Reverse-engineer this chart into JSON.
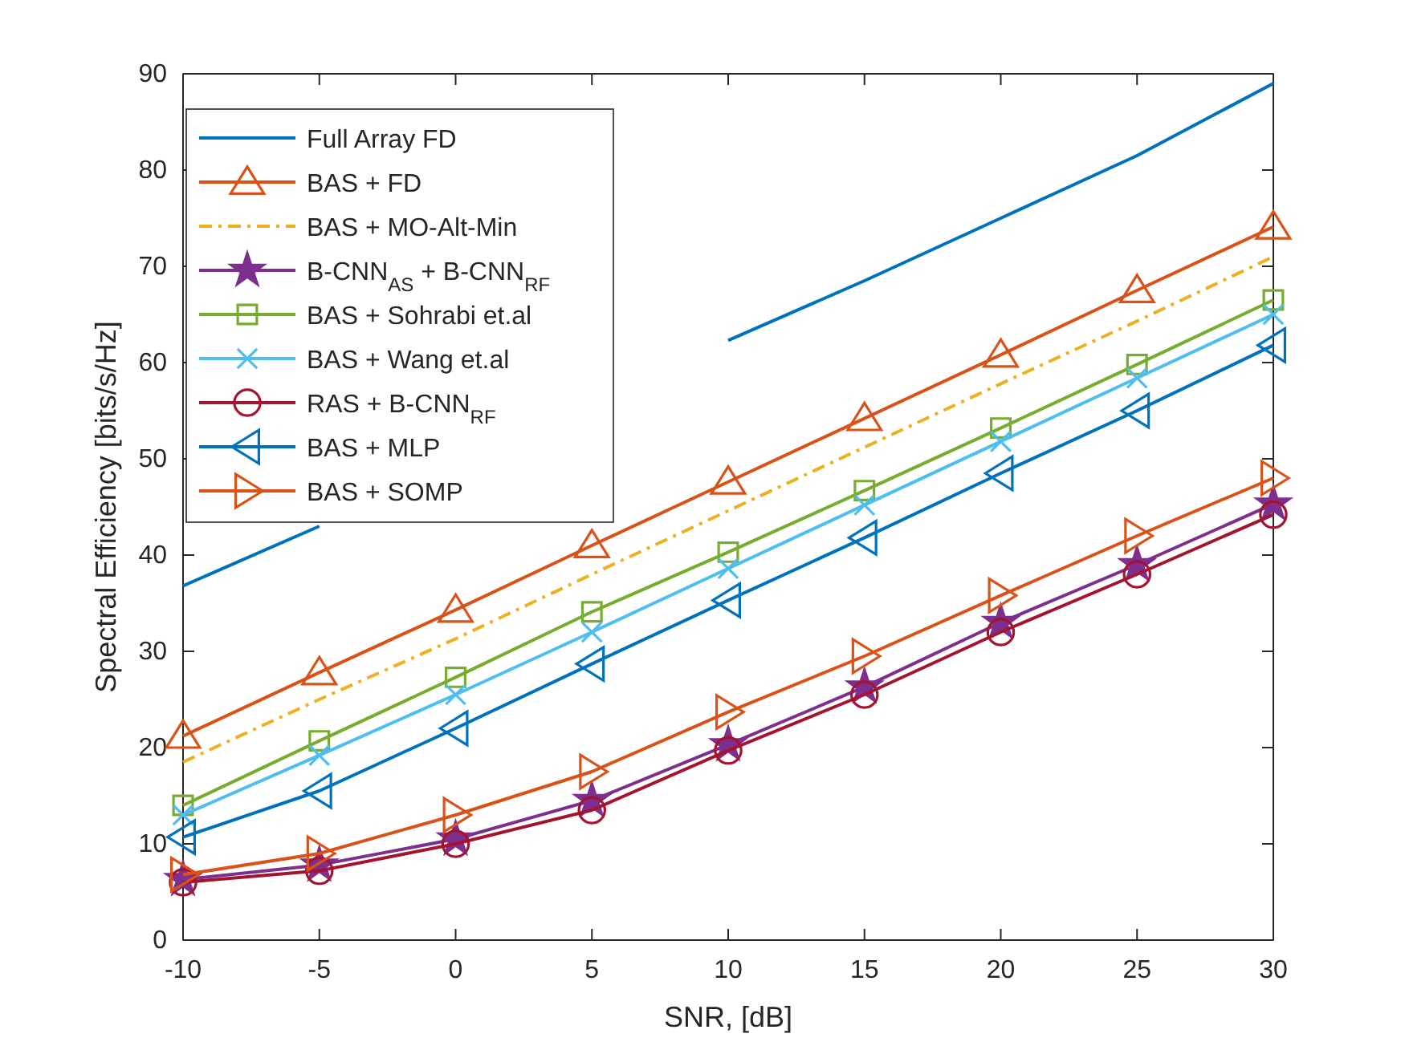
{
  "chart_data": {
    "type": "line",
    "xlabel": "SNR, [dB]",
    "ylabel": "Spectral Efficiency [bits/s/Hz]",
    "x": [
      -10,
      -5,
      0,
      5,
      10,
      15,
      20,
      25,
      30
    ],
    "xlim": [
      -10,
      30
    ],
    "xticks": [
      -10,
      -5,
      0,
      5,
      10,
      15,
      20,
      25,
      30
    ],
    "ylim": [
      0,
      90
    ],
    "yticks": [
      0,
      10,
      20,
      30,
      40,
      50,
      60,
      70,
      80,
      90
    ],
    "grid": false,
    "legend": "top left",
    "series": [
      {
        "name": "Full Array FD",
        "color": "#0072bd",
        "marker": "none",
        "line_style": "solid",
        "values": [
          36.8,
          43,
          null,
          null,
          62.3,
          68.5,
          75,
          81.5,
          89
        ]
      },
      {
        "name": "BAS + FD",
        "color": "#d95319",
        "marker": "triangle",
        "line_style": "solid",
        "values": [
          21.2,
          27.8,
          34.3,
          41,
          47.6,
          54.2,
          60.8,
          67.5,
          74.1
        ]
      },
      {
        "name": "BAS + MO-Alt-Min",
        "color": "#edb120",
        "marker": "none",
        "line_style": "dashdot",
        "values": [
          18.5,
          25,
          31.3,
          38,
          44.6,
          51.2,
          57.8,
          64.3,
          71
        ]
      },
      {
        "name": "B-CNN$_{AS}$ + B-CNN$_{RF}$",
        "color": "#7e2f8e",
        "marker": "star",
        "line_style": "solid",
        "values": [
          6.3,
          7.8,
          10.5,
          14.5,
          20.3,
          26.3,
          33,
          39,
          45.3
        ]
      },
      {
        "name": "BAS + Sohrabi et.al",
        "color": "#77ac30",
        "marker": "square",
        "line_style": "solid",
        "values": [
          14,
          20.7,
          27.3,
          34.1,
          40.3,
          46.7,
          53.2,
          59.8,
          66.5
        ]
      },
      {
        "name": "BAS + Wang et.al",
        "color": "#4dbeee",
        "marker": "cross",
        "line_style": "solid",
        "values": [
          13,
          19.2,
          25.5,
          32,
          38.6,
          45.2,
          51.8,
          58.4,
          65
        ]
      },
      {
        "name": "RAS + B-CNN$_{RF}$",
        "color": "#a2142f",
        "marker": "circle",
        "line_style": "solid",
        "values": [
          6,
          7.2,
          10,
          13.5,
          19.7,
          25.5,
          32,
          38,
          44.2
        ]
      },
      {
        "name": "BAS + MLP",
        "color": "#0072bd",
        "marker": "triangle-left",
        "line_style": "solid",
        "values": [
          10.7,
          15.5,
          22,
          28.7,
          35.3,
          41.8,
          48.5,
          55,
          61.8
        ]
      },
      {
        "name": "BAS + SOMP",
        "color": "#d95319",
        "marker": "triangle-right",
        "line_style": "solid",
        "values": [
          6.8,
          9,
          13,
          17.5,
          23.7,
          29.5,
          35.8,
          42,
          48
        ]
      }
    ]
  }
}
